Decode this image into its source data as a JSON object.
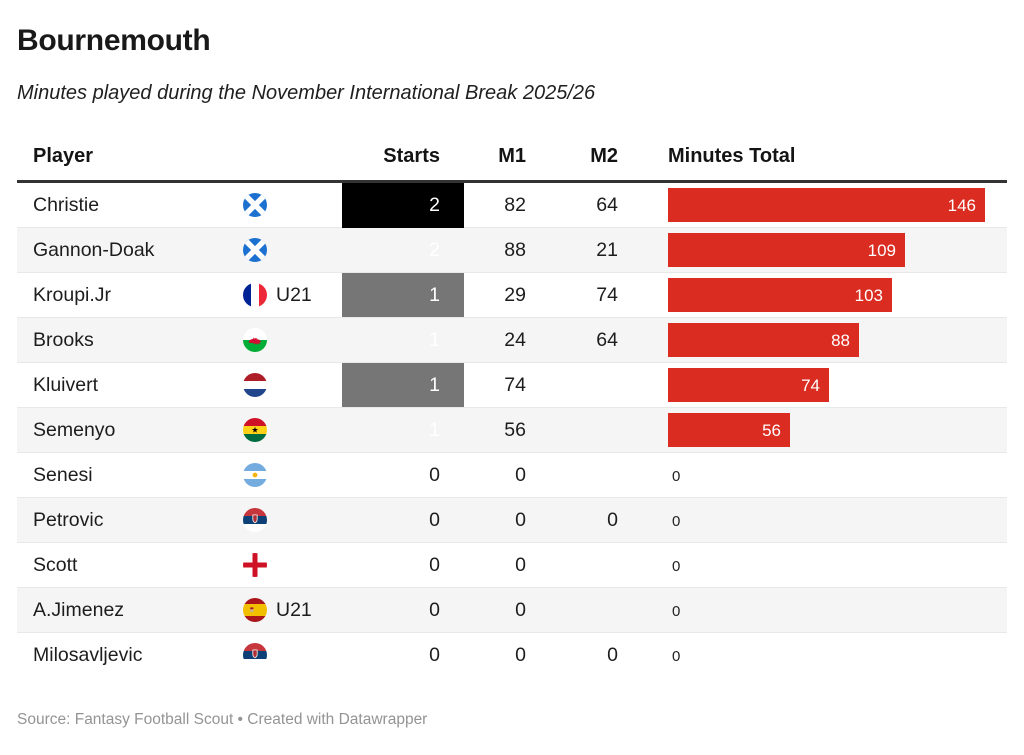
{
  "chart_data": {
    "type": "table",
    "title": "Bournemouth",
    "subtitle": "Minutes played during the November International Break 2025/26",
    "columns": {
      "player": "Player",
      "starts": "Starts",
      "m1": "M1",
      "m2": "M2",
      "total": "Minutes Total"
    },
    "u21_label": "U21",
    "bar_max": 146,
    "rows": [
      {
        "player": "Christie",
        "flag": "scotland",
        "u21": false,
        "starts": 2,
        "m1": "82",
        "m2": "64",
        "total": 146
      },
      {
        "player": "Gannon-Doak",
        "flag": "scotland",
        "u21": false,
        "starts": 2,
        "m1": "88",
        "m2": "21",
        "total": 109
      },
      {
        "player": "Kroupi.Jr",
        "flag": "france",
        "u21": true,
        "starts": 1,
        "m1": "29",
        "m2": "74",
        "total": 103
      },
      {
        "player": "Brooks",
        "flag": "wales",
        "u21": false,
        "starts": 1,
        "m1": "24",
        "m2": "64",
        "total": 88
      },
      {
        "player": "Kluivert",
        "flag": "netherlands",
        "u21": false,
        "starts": 1,
        "m1": "74",
        "m2": "",
        "total": 74
      },
      {
        "player": "Semenyo",
        "flag": "ghana",
        "u21": false,
        "starts": 1,
        "m1": "56",
        "m2": "",
        "total": 56
      },
      {
        "player": "Senesi",
        "flag": "argentina",
        "u21": false,
        "starts": 0,
        "m1": "0",
        "m2": "",
        "total": 0
      },
      {
        "player": "Petrovic",
        "flag": "serbia",
        "u21": false,
        "starts": 0,
        "m1": "0",
        "m2": "0",
        "total": 0
      },
      {
        "player": "Scott",
        "flag": "england",
        "u21": false,
        "starts": 0,
        "m1": "0",
        "m2": "",
        "total": 0
      },
      {
        "player": "A.Jimenez",
        "flag": "spain",
        "u21": true,
        "starts": 0,
        "m1": "0",
        "m2": "",
        "total": 0
      },
      {
        "player": "Milosavljevic",
        "flag": "serbia",
        "u21": false,
        "starts": 0,
        "m1": "0",
        "m2": "0",
        "total": 0
      }
    ]
  },
  "footer": {
    "text": "Source: Fantasy Football Scout • Created with Datawrapper"
  },
  "colors": {
    "bar": "#da2c20",
    "starts_2_bg": "#000000",
    "starts_1_bg": "#767676",
    "starts_0_bg": "#ffffff",
    "stripe": "#f5f5f5",
    "header_rule": "#333333",
    "row_rule": "#e8e8e8"
  }
}
